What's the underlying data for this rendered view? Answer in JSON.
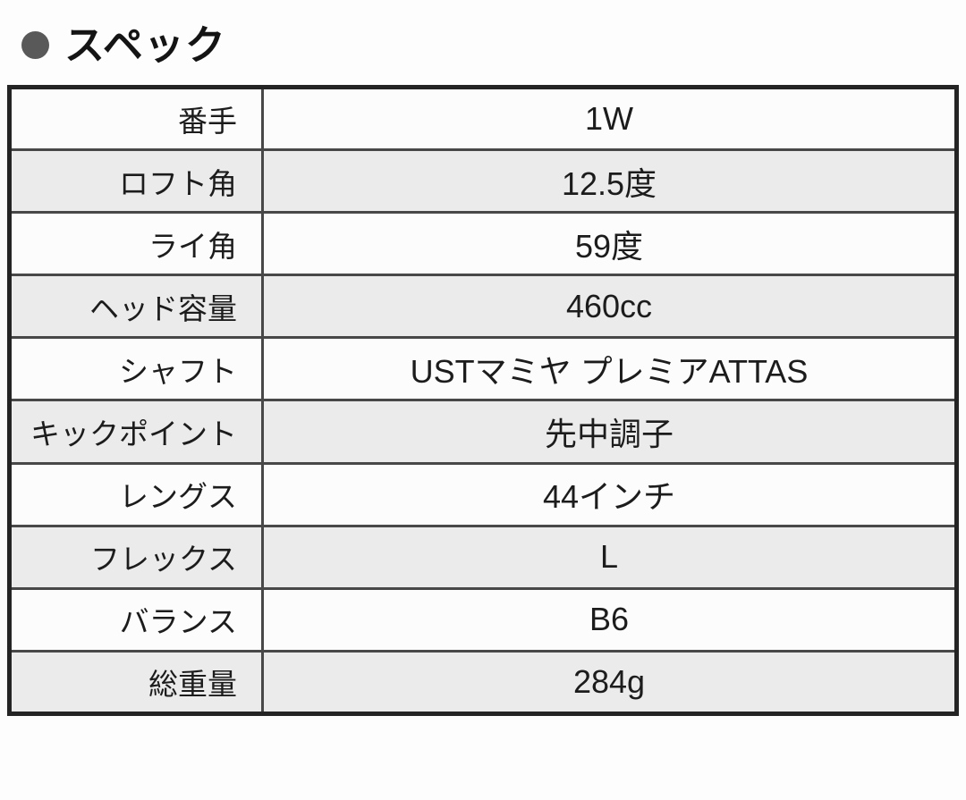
{
  "header": {
    "title": "スペック",
    "bullet_icon": "filled-circle",
    "bullet_color": "#595959"
  },
  "table": {
    "colors": {
      "row": "#fcfcfc",
      "row_alt": "#ebebeb",
      "border_outer": "#242424",
      "border_inner": "#484848",
      "text": "#1c1c1c"
    },
    "rows": [
      {
        "label": "番手",
        "value": "1W"
      },
      {
        "label": "ロフト角",
        "value": "12.5度"
      },
      {
        "label": "ライ角",
        "value": "59度"
      },
      {
        "label": "ヘッド容量",
        "value": "460cc"
      },
      {
        "label": "シャフト",
        "value": "USTマミヤ プレミアATTAS"
      },
      {
        "label": "キックポイント",
        "value": "先中調子"
      },
      {
        "label": "レングス",
        "value": "44インチ"
      },
      {
        "label": "フレックス",
        "value": "L"
      },
      {
        "label": "バランス",
        "value": "B6"
      },
      {
        "label": "総重量",
        "value": "284g"
      }
    ]
  }
}
